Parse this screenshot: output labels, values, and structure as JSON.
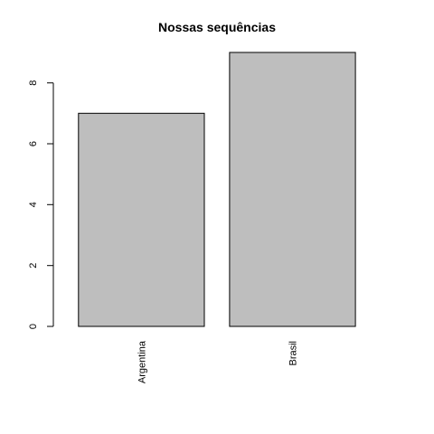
{
  "chart_data": {
    "type": "bar",
    "title": "Nossas sequências",
    "xlabel": "",
    "ylabel": "",
    "categories": [
      "Argentina",
      "Brasil"
    ],
    "values": [
      7,
      9
    ],
    "yticks": [
      0,
      2,
      4,
      6,
      8
    ],
    "ylim": [
      0,
      9
    ],
    "grid": false,
    "legend": "none",
    "colors": {
      "bar_fill": "#bebebe",
      "bar_stroke": "#000000",
      "axis": "#000000"
    }
  }
}
